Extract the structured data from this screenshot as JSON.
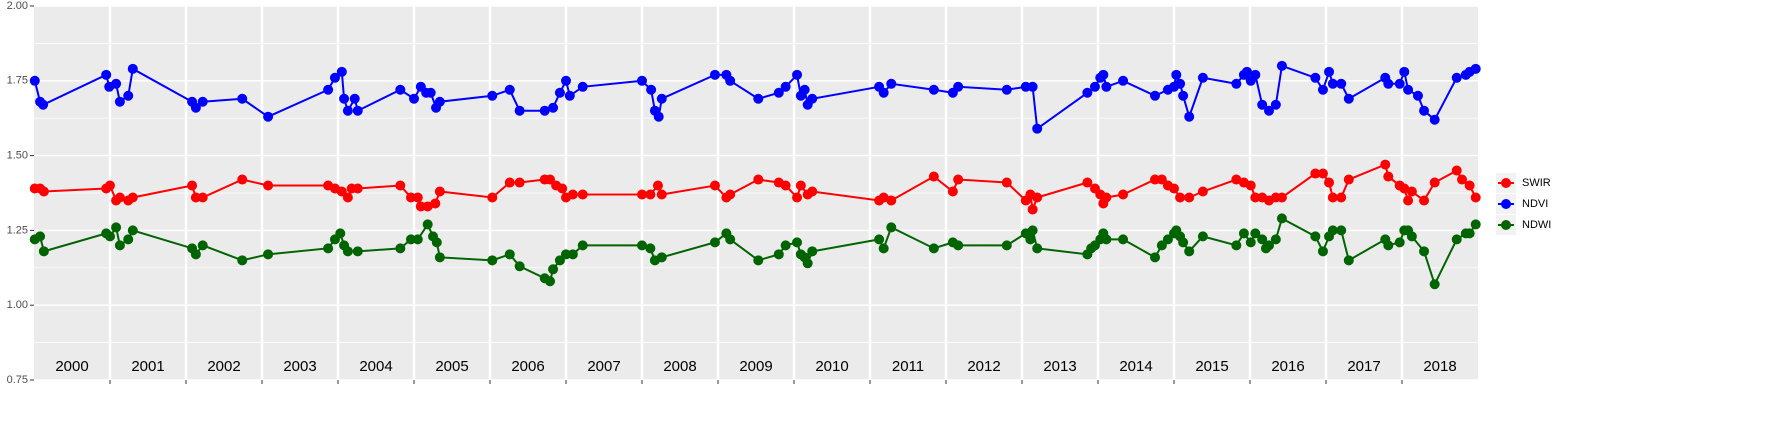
{
  "chart_data": {
    "type": "line",
    "xlim": [
      2000,
      2019
    ],
    "xgrid": [
      2001,
      2002,
      2003,
      2004,
      2005,
      2006,
      2007,
      2008,
      2009,
      2010,
      2011,
      2012,
      2013,
      2014,
      2015,
      2016,
      2017,
      2018
    ],
    "xticks": [
      {
        "value": 2000.5,
        "label": "2000"
      },
      {
        "value": 2001.5,
        "label": "2001"
      },
      {
        "value": 2002.5,
        "label": "2002"
      },
      {
        "value": 2003.5,
        "label": "2003"
      },
      {
        "value": 2004.5,
        "label": "2004"
      },
      {
        "value": 2005.5,
        "label": "2005"
      },
      {
        "value": 2006.5,
        "label": "2006"
      },
      {
        "value": 2007.5,
        "label": "2007"
      },
      {
        "value": 2008.5,
        "label": "2008"
      },
      {
        "value": 2009.5,
        "label": "2009"
      },
      {
        "value": 2010.5,
        "label": "2010"
      },
      {
        "value": 2011.5,
        "label": "2011"
      },
      {
        "value": 2012.5,
        "label": "2012"
      },
      {
        "value": 2013.5,
        "label": "2013"
      },
      {
        "value": 2014.5,
        "label": "2014"
      },
      {
        "value": 2015.5,
        "label": "2015"
      },
      {
        "value": 2016.5,
        "label": "2016"
      },
      {
        "value": 2017.5,
        "label": "2017"
      },
      {
        "value": 2018.5,
        "label": "2018"
      }
    ],
    "ylim": [
      0.75,
      2.0
    ],
    "yticks": [
      {
        "value": 0.75,
        "label": "0.75"
      },
      {
        "value": 1,
        "label": "1.00"
      },
      {
        "value": 1.25,
        "label": "1.25"
      },
      {
        "value": 1.5,
        "label": "1.50"
      },
      {
        "value": 1.75,
        "label": "1.75"
      },
      {
        "value": 2,
        "label": "2.00"
      }
    ],
    "grid": true,
    "legend": "right",
    "series": [
      {
        "name": "SWIR",
        "color": "#ff0000",
        "x": [
          2000.01,
          2000.08,
          2000.13,
          2000.95,
          2001.0,
          2001.08,
          2001.13,
          2001.24,
          2001.3,
          2002.08,
          2002.13,
          2002.22,
          2002.74,
          2003.08,
          2003.87,
          2003.96,
          2004.05,
          2004.13,
          2004.18,
          2004.26,
          2004.82,
          2004.96,
          2005.05,
          2005.09,
          2005.18,
          2005.28,
          2005.34,
          2006.03,
          2006.26,
          2006.39,
          2006.72,
          2006.79,
          2006.87,
          2006.95,
          2007.0,
          2007.09,
          2007.22,
          2008.0,
          2008.11,
          2008.21,
          2008.26,
          2008.96,
          2009.11,
          2009.16,
          2009.53,
          2009.8,
          2009.89,
          2010.04,
          2010.09,
          2010.18,
          2010.24,
          2011.12,
          2011.18,
          2011.28,
          2011.84,
          2012.09,
          2012.16,
          2012.8,
          2013.05,
          2013.11,
          2013.14,
          2013.2,
          2013.86,
          2013.96,
          2014.03,
          2014.07,
          2014.11,
          2014.33,
          2014.75,
          2014.84,
          2014.92,
          2015.0,
          2015.08,
          2015.2,
          2015.38,
          2015.82,
          2015.92,
          2016.01,
          2016.07,
          2016.16,
          2016.25,
          2016.34,
          2016.42,
          2016.86,
          2016.96,
          2017.04,
          2017.09,
          2017.2,
          2017.3,
          2017.78,
          2017.82,
          2017.97,
          2018.03,
          2018.08,
          2018.13,
          2018.29,
          2018.43,
          2018.72,
          2018.79,
          2018.89,
          2018.97
        ],
        "values": [
          1.39,
          1.39,
          1.38,
          1.39,
          1.4,
          1.35,
          1.36,
          1.35,
          1.36,
          1.4,
          1.36,
          1.36,
          1.42,
          1.4,
          1.4,
          1.39,
          1.38,
          1.36,
          1.39,
          1.39,
          1.4,
          1.36,
          1.36,
          1.33,
          1.33,
          1.34,
          1.38,
          1.36,
          1.41,
          1.41,
          1.42,
          1.42,
          1.4,
          1.39,
          1.36,
          1.37,
          1.37,
          1.37,
          1.37,
          1.4,
          1.37,
          1.4,
          1.36,
          1.37,
          1.42,
          1.41,
          1.4,
          1.36,
          1.4,
          1.37,
          1.38,
          1.35,
          1.36,
          1.35,
          1.43,
          1.38,
          1.42,
          1.41,
          1.35,
          1.37,
          1.32,
          1.36,
          1.41,
          1.39,
          1.37,
          1.34,
          1.36,
          1.37,
          1.42,
          1.42,
          1.4,
          1.39,
          1.36,
          1.36,
          1.38,
          1.42,
          1.41,
          1.4,
          1.36,
          1.36,
          1.35,
          1.36,
          1.36,
          1.44,
          1.44,
          1.41,
          1.36,
          1.36,
          1.42,
          1.47,
          1.43,
          1.4,
          1.39,
          1.35,
          1.38,
          1.35,
          1.41,
          1.45,
          1.42,
          1.4,
          1.36
        ]
      },
      {
        "name": "NDVI",
        "color": "#0000ff",
        "x": [
          2000.01,
          2000.08,
          2000.12,
          2000.95,
          2000.99,
          2001.08,
          2001.13,
          2001.24,
          2001.3,
          2002.08,
          2002.13,
          2002.22,
          2002.74,
          2003.08,
          2003.87,
          2003.96,
          2004.05,
          2004.08,
          2004.13,
          2004.22,
          2004.26,
          2004.82,
          2005.0,
          2005.09,
          2005.16,
          2005.22,
          2005.29,
          2005.34,
          2006.03,
          2006.26,
          2006.39,
          2006.72,
          2006.83,
          2006.92,
          2007.0,
          2007.05,
          2007.22,
          2008.0,
          2008.12,
          2008.17,
          2008.22,
          2008.26,
          2008.96,
          2009.11,
          2009.16,
          2009.53,
          2009.8,
          2009.89,
          2010.04,
          2010.09,
          2010.14,
          2010.18,
          2010.24,
          2011.12,
          2011.18,
          2011.28,
          2011.84,
          2012.09,
          2012.16,
          2012.8,
          2013.05,
          2013.14,
          2013.2,
          2013.86,
          2013.96,
          2014.03,
          2014.07,
          2014.11,
          2014.33,
          2014.75,
          2014.92,
          2015.0,
          2015.03,
          2015.08,
          2015.12,
          2015.2,
          2015.38,
          2015.82,
          2015.92,
          2015.96,
          2016.01,
          2016.07,
          2016.16,
          2016.25,
          2016.34,
          2016.42,
          2016.86,
          2016.96,
          2017.04,
          2017.09,
          2017.2,
          2017.3,
          2017.78,
          2017.82,
          2017.97,
          2018.03,
          2018.08,
          2018.21,
          2018.29,
          2018.43,
          2018.72,
          2018.84,
          2018.89,
          2018.97
        ],
        "values": [
          1.75,
          1.68,
          1.67,
          1.77,
          1.73,
          1.74,
          1.68,
          1.7,
          1.79,
          1.68,
          1.66,
          1.68,
          1.69,
          1.63,
          1.72,
          1.76,
          1.78,
          1.69,
          1.65,
          1.69,
          1.65,
          1.72,
          1.69,
          1.73,
          1.71,
          1.71,
          1.66,
          1.68,
          1.7,
          1.72,
          1.65,
          1.65,
          1.66,
          1.71,
          1.75,
          1.7,
          1.73,
          1.75,
          1.72,
          1.65,
          1.63,
          1.69,
          1.77,
          1.77,
          1.75,
          1.69,
          1.71,
          1.73,
          1.77,
          1.7,
          1.72,
          1.67,
          1.69,
          1.73,
          1.71,
          1.74,
          1.72,
          1.71,
          1.73,
          1.72,
          1.73,
          1.73,
          1.59,
          1.71,
          1.73,
          1.76,
          1.77,
          1.73,
          1.75,
          1.7,
          1.72,
          1.73,
          1.77,
          1.74,
          1.7,
          1.63,
          1.76,
          1.74,
          1.77,
          1.78,
          1.75,
          1.77,
          1.67,
          1.65,
          1.67,
          1.8,
          1.76,
          1.72,
          1.78,
          1.74,
          1.74,
          1.69,
          1.76,
          1.74,
          1.74,
          1.78,
          1.72,
          1.7,
          1.65,
          1.62,
          1.76,
          1.77,
          1.78,
          1.79
        ]
      },
      {
        "name": "NDWI",
        "color": "#006400",
        "x": [
          2000.01,
          2000.08,
          2000.13,
          2000.95,
          2001.0,
          2001.08,
          2001.13,
          2001.24,
          2001.3,
          2002.08,
          2002.13,
          2002.22,
          2002.74,
          2003.08,
          2003.87,
          2003.96,
          2004.03,
          2004.08,
          2004.13,
          2004.26,
          2004.82,
          2004.96,
          2005.05,
          2005.18,
          2005.25,
          2005.3,
          2005.34,
          2006.03,
          2006.26,
          2006.39,
          2006.72,
          2006.79,
          2006.83,
          2006.92,
          2007.0,
          2007.09,
          2007.22,
          2008.0,
          2008.11,
          2008.17,
          2008.26,
          2008.96,
          2009.11,
          2009.16,
          2009.53,
          2009.8,
          2009.89,
          2010.04,
          2010.09,
          2010.14,
          2010.18,
          2010.24,
          2011.12,
          2011.18,
          2011.28,
          2011.84,
          2012.09,
          2012.16,
          2012.8,
          2013.05,
          2013.11,
          2013.14,
          2013.2,
          2013.86,
          2013.91,
          2013.96,
          2014.03,
          2014.07,
          2014.11,
          2014.33,
          2014.75,
          2014.84,
          2014.92,
          2015.0,
          2015.03,
          2015.08,
          2015.12,
          2015.2,
          2015.38,
          2015.82,
          2015.92,
          2016.01,
          2016.07,
          2016.16,
          2016.21,
          2016.25,
          2016.34,
          2016.42,
          2016.86,
          2016.96,
          2017.04,
          2017.09,
          2017.2,
          2017.3,
          2017.78,
          2017.82,
          2017.97,
          2018.03,
          2018.08,
          2018.13,
          2018.29,
          2018.43,
          2018.72,
          2018.84,
          2018.89,
          2018.97
        ],
        "values": [
          1.22,
          1.23,
          1.18,
          1.24,
          1.23,
          1.26,
          1.2,
          1.22,
          1.25,
          1.19,
          1.17,
          1.2,
          1.15,
          1.17,
          1.19,
          1.22,
          1.24,
          1.2,
          1.18,
          1.18,
          1.19,
          1.22,
          1.22,
          1.27,
          1.23,
          1.21,
          1.16,
          1.15,
          1.17,
          1.13,
          1.09,
          1.08,
          1.12,
          1.15,
          1.17,
          1.17,
          1.2,
          1.2,
          1.19,
          1.15,
          1.16,
          1.21,
          1.24,
          1.22,
          1.15,
          1.17,
          1.2,
          1.21,
          1.17,
          1.16,
          1.14,
          1.18,
          1.22,
          1.19,
          1.26,
          1.19,
          1.21,
          1.2,
          1.2,
          1.24,
          1.22,
          1.25,
          1.19,
          1.17,
          1.19,
          1.2,
          1.22,
          1.24,
          1.22,
          1.22,
          1.16,
          1.2,
          1.22,
          1.24,
          1.25,
          1.23,
          1.21,
          1.18,
          1.23,
          1.2,
          1.24,
          1.21,
          1.24,
          1.22,
          1.19,
          1.2,
          1.22,
          1.29,
          1.23,
          1.18,
          1.23,
          1.25,
          1.25,
          1.15,
          1.22,
          1.2,
          1.21,
          1.25,
          1.25,
          1.23,
          1.18,
          1.07,
          1.22,
          1.24,
          1.24,
          1.27
        ]
      }
    ]
  }
}
